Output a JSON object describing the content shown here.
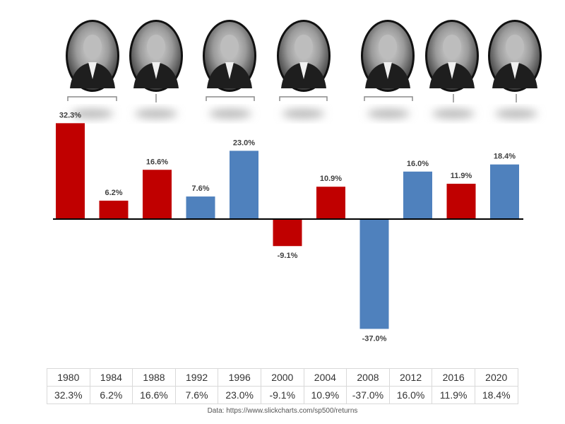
{
  "colors": {
    "republican": "#c00000",
    "democrat": "#4f81bd",
    "axis": "#000000",
    "label": "#404040"
  },
  "presidents": [
    {
      "icon": "portrait-photo-icon",
      "party": "republican",
      "bracket": "pair-start"
    },
    {
      "icon": "portrait-photo-icon",
      "party": "republican",
      "bracket": "single"
    },
    {
      "icon": "portrait-photo-icon",
      "party": "democrat",
      "bracket": "pair-start"
    },
    {
      "icon": "portrait-photo-icon",
      "party": "republican",
      "bracket": "pair-start"
    },
    {
      "icon": "portrait-photo-icon",
      "party": "democrat",
      "bracket": "pair-start"
    },
    {
      "icon": "portrait-photo-icon",
      "party": "republican",
      "bracket": "single"
    },
    {
      "icon": "portrait-photo-icon",
      "party": "democrat",
      "bracket": "single"
    }
  ],
  "chart_data": {
    "type": "bar",
    "categories": [
      "1980",
      "1984",
      "1988",
      "1992",
      "1996",
      "2000",
      "2004",
      "2008",
      "2012",
      "2016",
      "2020"
    ],
    "values": [
      32.3,
      6.2,
      16.6,
      7.6,
      23.0,
      -9.1,
      10.9,
      -37.0,
      16.0,
      11.9,
      18.4
    ],
    "value_labels": [
      "32.3%",
      "6.2%",
      "16.6%",
      "7.6%",
      "23.0%",
      "-9.1%",
      "10.9%",
      "-37.0%",
      "16.0%",
      "11.9%",
      "18.4%"
    ],
    "bar_party": [
      "republican",
      "republican",
      "republican",
      "democrat",
      "democrat",
      "republican",
      "republican",
      "democrat",
      "democrat",
      "republican",
      "democrat"
    ],
    "ylim": [
      -40,
      36
    ],
    "grid": false,
    "title": "",
    "xlabel": "",
    "ylabel": ""
  },
  "table": {
    "years": [
      "1980",
      "1984",
      "1988",
      "1992",
      "1996",
      "2000",
      "2004",
      "2008",
      "2012",
      "2016",
      "2020"
    ],
    "returns": [
      "32.3%",
      "6.2%",
      "16.6%",
      "7.6%",
      "23.0%",
      "-9.1%",
      "10.9%",
      "-37.0%",
      "16.0%",
      "11.9%",
      "18.4%"
    ]
  },
  "source_note": "Data: https://www.slickcharts.com/sp500/returns"
}
